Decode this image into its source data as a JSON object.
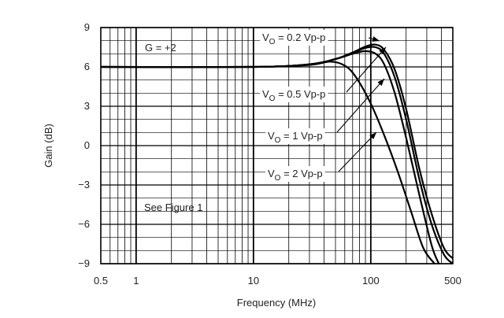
{
  "chart_data": {
    "type": "line",
    "title": "",
    "xlabel": "Frequency (MHz)",
    "ylabel": "Gain (dB)",
    "x_scale": "log",
    "xlim": [
      0.5,
      500
    ],
    "ylim": [
      -9,
      9
    ],
    "x_ticks": [
      "0.5",
      "1",
      "10",
      "100",
      "500"
    ],
    "y_ticks": [
      "9",
      "6",
      "3",
      "0",
      "−3",
      "−6",
      "−9"
    ],
    "grid": true,
    "annotations": {
      "gain_setting": "G = +2",
      "reference": "See Figure 1"
    },
    "series": [
      {
        "name": "VO = 0.2 Vp-p",
        "label_main": "V",
        "label_sub": "O",
        "label_rest": " = 0.2 Vp-p",
        "x": [
          0.5,
          10,
          30,
          50,
          70,
          90,
          110,
          130,
          160,
          200,
          260,
          330,
          420,
          500
        ],
        "y": [
          6,
          6,
          6.2,
          6.6,
          7.1,
          7.55,
          7.7,
          7.3,
          5.8,
          2.8,
          -1.8,
          -5.2,
          -7.8,
          -8.6
        ]
      },
      {
        "name": "VO = 0.5 Vp-p",
        "label_main": "V",
        "label_sub": "O",
        "label_rest": " = 0.5 Vp-p",
        "x": [
          0.5,
          10,
          30,
          50,
          70,
          90,
          110,
          130,
          160,
          200,
          260,
          330,
          420,
          500
        ],
        "y": [
          6,
          6,
          6.2,
          6.6,
          7.05,
          7.45,
          7.5,
          7.0,
          5.2,
          2.0,
          -2.6,
          -6.0,
          -8.3,
          -9.0
        ]
      },
      {
        "name": "VO = 1 Vp-p",
        "label_main": "V",
        "label_sub": "O",
        "label_rest": " = 1 Vp-p",
        "x": [
          0.5,
          10,
          30,
          50,
          70,
          90,
          110,
          130,
          160,
          200,
          260,
          330,
          380
        ],
        "y": [
          6,
          6,
          6.2,
          6.6,
          7.0,
          7.2,
          7.0,
          6.2,
          4.0,
          0.6,
          -3.8,
          -7.6,
          -9.0
        ]
      },
      {
        "name": "VO = 2 Vp-p",
        "label_main": "V",
        "label_sub": "O",
        "label_rest": " = 2 Vp-p",
        "x": [
          0.5,
          10,
          30,
          45,
          60,
          75,
          100,
          130,
          170,
          220,
          280,
          350
        ],
        "y": [
          6,
          6,
          6.15,
          6.4,
          6.1,
          5.2,
          3.2,
          0.8,
          -2.0,
          -5.0,
          -7.8,
          -9.0
        ]
      }
    ]
  }
}
